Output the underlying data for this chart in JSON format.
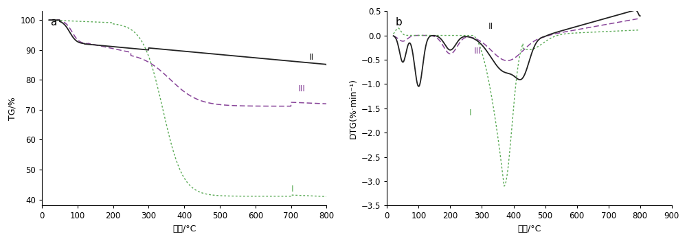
{
  "panel_a": {
    "title": "a",
    "xlabel": "温度/°C",
    "ylabel": "TG/%",
    "xlim": [
      0,
      800
    ],
    "ylim": [
      38,
      103
    ],
    "xticks": [
      0,
      100,
      200,
      300,
      400,
      500,
      600,
      700,
      800
    ],
    "yticks": [
      40,
      50,
      60,
      70,
      80,
      90,
      100
    ]
  },
  "panel_b": {
    "title": "b",
    "xlabel": "温度/°C",
    "ylabel": "DTG(%·min⁻¹)",
    "xlim": [
      0,
      900
    ],
    "ylim": [
      -3.5,
      0.5
    ],
    "xticks": [
      0,
      100,
      200,
      300,
      400,
      500,
      600,
      700,
      800,
      900
    ],
    "yticks": [
      -3.5,
      -3.0,
      -2.5,
      -2.0,
      -1.5,
      -1.0,
      -0.5,
      0.0,
      0.5
    ]
  },
  "color_I": "#5aaa55",
  "color_II": "#222222",
  "color_III": "#884499",
  "background_color": "#ffffff",
  "label_II_a": [
    750,
    87.5,
    "II"
  ],
  "label_III_a": [
    720,
    77,
    "III"
  ],
  "label_I_a": [
    700,
    43.5,
    "I"
  ],
  "label_II_b": [
    320,
    0.18,
    "II"
  ],
  "label_III_b": [
    275,
    -0.32,
    "III"
  ],
  "label_I_b": [
    260,
    -1.6,
    "I"
  ]
}
